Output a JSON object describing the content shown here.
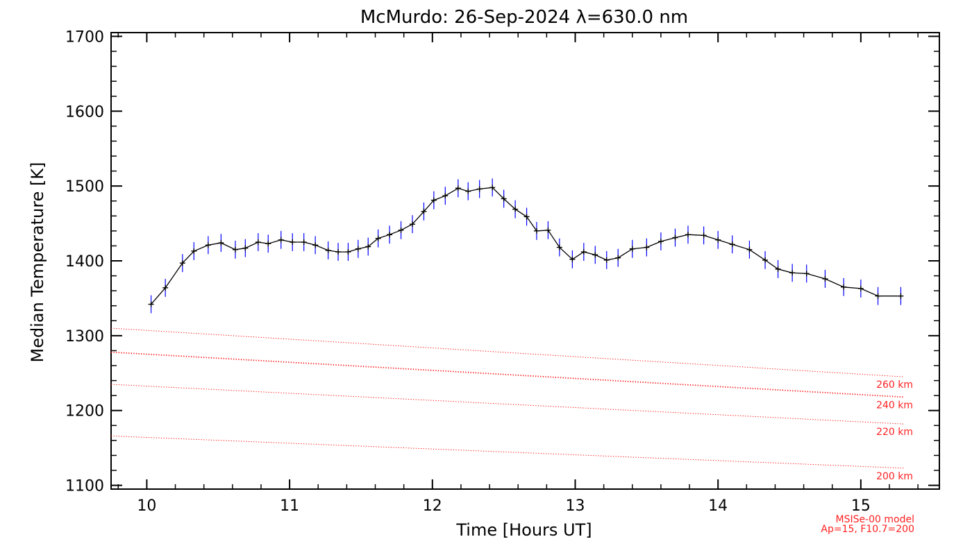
{
  "chart_data": {
    "type": "line",
    "title": "McMurdo: 26-Sep-2024 λ=630.0 nm",
    "xlabel": "Time [Hours UT]",
    "ylabel": "Median Temperature [K]",
    "xlim": [
      9.75,
      15.55
    ],
    "ylim": [
      1095,
      1705
    ],
    "xticks": [
      10,
      11,
      12,
      13,
      14,
      15
    ],
    "yticks": [
      1100,
      1200,
      1300,
      1400,
      1500,
      1600,
      1700
    ],
    "grid": false,
    "colors": {
      "line": "#000000",
      "errorbar": "#0000ff",
      "model": "#ff0000"
    },
    "series": [
      {
        "x": [
          10.03,
          10.13,
          10.25,
          10.33,
          10.43,
          10.52,
          10.62,
          10.69,
          10.78,
          10.85,
          10.94,
          11.02,
          11.1,
          11.18,
          11.27,
          11.34,
          11.41,
          11.48,
          11.55,
          11.62,
          11.7,
          11.78,
          11.86,
          11.94,
          12.01,
          12.09,
          12.18,
          12.25,
          12.33,
          12.42,
          12.5,
          12.58,
          12.66,
          12.73,
          12.81,
          12.89,
          12.98,
          13.06,
          13.14,
          13.22,
          13.3,
          13.4,
          13.5,
          13.6,
          13.7,
          13.79,
          13.9,
          14.0,
          14.1,
          14.22,
          14.33,
          14.42,
          14.52,
          14.62,
          14.75,
          14.88,
          15.0,
          15.12,
          15.28
        ],
        "y": [
          1342,
          1364,
          1397,
          1413,
          1421,
          1424,
          1415,
          1417,
          1425,
          1423,
          1428,
          1425,
          1425,
          1421,
          1414,
          1412,
          1412,
          1416,
          1419,
          1430,
          1435,
          1441,
          1449,
          1466,
          1481,
          1487,
          1497,
          1493,
          1496,
          1498,
          1483,
          1469,
          1459,
          1440,
          1441,
          1418,
          1402,
          1412,
          1408,
          1401,
          1404,
          1416,
          1418,
          1426,
          1431,
          1435,
          1434,
          1428,
          1422,
          1415,
          1401,
          1389,
          1384,
          1383,
          1376,
          1365,
          1363,
          1353,
          1353
        ],
        "yerr": 12
      }
    ],
    "model_lines": [
      {
        "label": "260 km",
        "x": [
          9.75,
          15.3
        ],
        "y": [
          1310,
          1245
        ]
      },
      {
        "label": "240 km",
        "x": [
          9.75,
          15.3
        ],
        "y": [
          1278,
          1218
        ]
      },
      {
        "label": "220 km",
        "x": [
          9.75,
          15.3
        ],
        "y": [
          1235,
          1182
        ]
      },
      {
        "label": "200 km",
        "x": [
          9.75,
          15.3
        ],
        "y": [
          1166,
          1123
        ]
      }
    ],
    "annotation": [
      "MSISe-00 model",
      "Ap=15, F10.7=200"
    ]
  }
}
